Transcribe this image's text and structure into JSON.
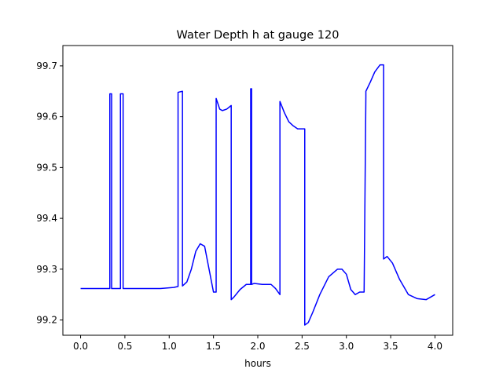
{
  "chart_data": {
    "type": "line",
    "title": "Water Depth h at gauge 120",
    "xlabel": "hours",
    "ylabel": "",
    "xlim": [
      -0.2,
      4.2
    ],
    "ylim": [
      99.17,
      99.74
    ],
    "xticks": [
      0.0,
      0.5,
      1.0,
      1.5,
      2.0,
      2.5,
      3.0,
      3.5,
      4.0
    ],
    "xtick_labels": [
      "0.0",
      "0.5",
      "1.0",
      "1.5",
      "2.0",
      "2.5",
      "3.0",
      "3.5",
      "4.0"
    ],
    "yticks": [
      99.2,
      99.3,
      99.4,
      99.5,
      99.6,
      99.7
    ],
    "ytick_labels": [
      "99.2",
      "99.3",
      "99.4",
      "99.5",
      "99.6",
      "99.7"
    ],
    "grid": false,
    "legend": "none",
    "series": [
      {
        "color": "#0000ff",
        "x": [
          0.0,
          0.33,
          0.33,
          0.35,
          0.35,
          0.45,
          0.45,
          0.48,
          0.48,
          0.9,
          1.05,
          1.1,
          1.1,
          1.15,
          1.15,
          1.2,
          1.25,
          1.3,
          1.35,
          1.4,
          1.45,
          1.5,
          1.53,
          1.53,
          1.57,
          1.6,
          1.65,
          1.7,
          1.7,
          1.73,
          1.8,
          1.87,
          1.92,
          1.92,
          1.93,
          1.93,
          1.96,
          2.05,
          2.15,
          2.2,
          2.25,
          2.25,
          2.3,
          2.35,
          2.4,
          2.45,
          2.53,
          2.53,
          2.57,
          2.62,
          2.7,
          2.8,
          2.9,
          2.95,
          3.0,
          3.05,
          3.1,
          3.15,
          3.2,
          3.22,
          3.22,
          3.27,
          3.32,
          3.38,
          3.42,
          3.42,
          3.46,
          3.52,
          3.6,
          3.7,
          3.8,
          3.9,
          3.95,
          4.0
        ],
        "y": [
          99.262,
          99.262,
          99.645,
          99.645,
          99.262,
          99.262,
          99.645,
          99.645,
          99.262,
          99.262,
          99.264,
          99.266,
          99.648,
          99.65,
          99.267,
          99.275,
          99.3,
          99.335,
          99.35,
          99.345,
          99.3,
          99.255,
          99.255,
          99.636,
          99.615,
          99.612,
          99.615,
          99.622,
          99.24,
          99.245,
          99.26,
          99.27,
          99.27,
          99.655,
          99.655,
          99.27,
          99.272,
          99.27,
          99.27,
          99.262,
          99.25,
          99.63,
          99.608,
          99.59,
          99.582,
          99.576,
          99.576,
          99.19,
          99.195,
          99.215,
          99.25,
          99.285,
          99.3,
          99.3,
          99.29,
          99.26,
          99.25,
          99.255,
          99.255,
          99.64,
          99.65,
          99.668,
          99.688,
          99.702,
          99.702,
          99.32,
          99.325,
          99.312,
          99.28,
          99.25,
          99.242,
          99.24,
          99.245,
          99.25
        ]
      }
    ]
  }
}
